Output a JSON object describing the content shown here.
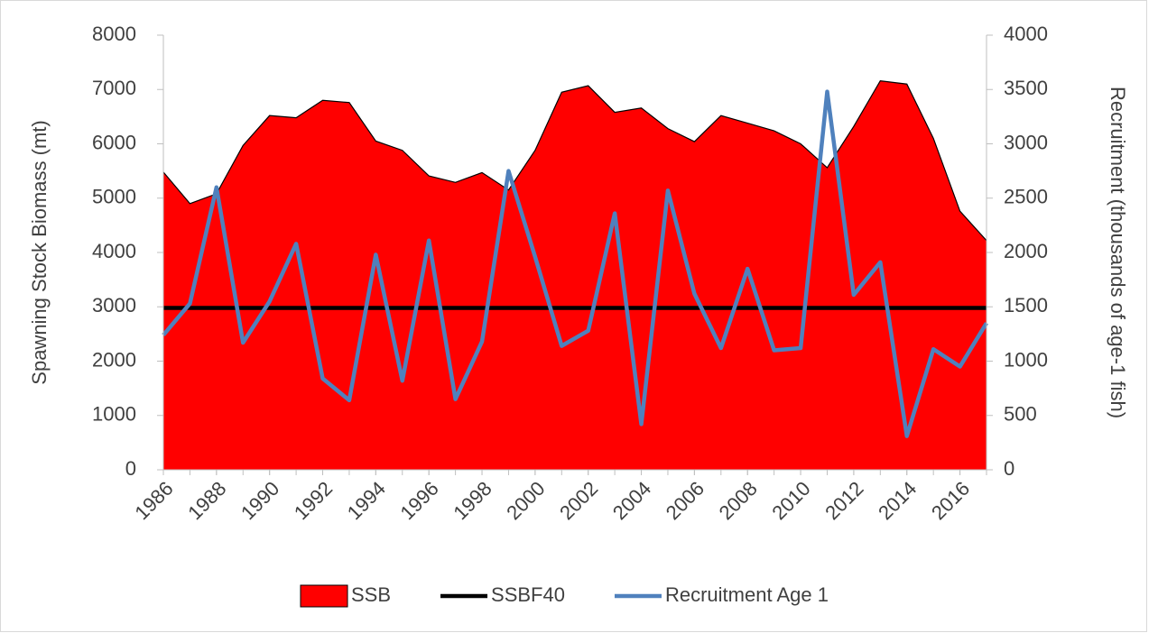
{
  "chart_data": {
    "type": "area-line",
    "x": [
      1986,
      1987,
      1988,
      1989,
      1990,
      1991,
      1992,
      1993,
      1994,
      1995,
      1996,
      1997,
      1998,
      1999,
      2000,
      2001,
      2002,
      2003,
      2004,
      2005,
      2006,
      2007,
      2008,
      2009,
      2010,
      2011,
      2012,
      2013,
      2014,
      2015,
      2016,
      2017
    ],
    "xlim": [
      1986,
      2017
    ],
    "xticks": [
      1986,
      1988,
      1990,
      1992,
      1994,
      1996,
      1998,
      2000,
      2002,
      2004,
      2006,
      2008,
      2010,
      2012,
      2014,
      2016
    ],
    "ylabel": "Spawning Stock Biomass (mt)",
    "y2label": "Recruitment (thousands of age-1 fish)",
    "ylim": [
      0,
      8000
    ],
    "yticks": [
      0,
      1000,
      2000,
      3000,
      4000,
      5000,
      6000,
      7000,
      8000
    ],
    "y2lim": [
      0,
      4000
    ],
    "y2ticks": [
      0,
      500,
      1000,
      1500,
      2000,
      2500,
      3000,
      3500,
      4000
    ],
    "legend": "bottom",
    "series": [
      {
        "name": "SSB",
        "kind": "area",
        "color": "#ff0000",
        "values": [
          5480,
          4900,
          5080,
          5970,
          6520,
          6480,
          6800,
          6760,
          6050,
          5880,
          5410,
          5290,
          5470,
          5150,
          5880,
          6950,
          7070,
          6580,
          6660,
          6280,
          6040,
          6520,
          6380,
          6240,
          6000,
          5560,
          6320,
          7160,
          7100,
          6100,
          4760,
          4220
        ]
      },
      {
        "name": "SSBF40",
        "kind": "line",
        "color": "#000000",
        "values": [
          2980,
          2980,
          2980,
          2980,
          2980,
          2980,
          2980,
          2980,
          2980,
          2980,
          2980,
          2980,
          2980,
          2980,
          2980,
          2980,
          2980,
          2980,
          2980,
          2980,
          2980,
          2980,
          2980,
          2980,
          2980,
          2980,
          2980,
          2980,
          2980,
          2980,
          2980,
          2980
        ]
      },
      {
        "name": "Recruitment Age 1",
        "kind": "line",
        "axis": "y2",
        "color": "#4f81bd",
        "values": [
          1240,
          1530,
          2600,
          1170,
          1550,
          2080,
          840,
          640,
          1980,
          820,
          2110,
          650,
          1180,
          2750,
          1960,
          1140,
          1280,
          2360,
          420,
          2570,
          1620,
          1120,
          1850,
          1100,
          1120,
          3480,
          1610,
          1910,
          310,
          1110,
          950,
          1350
        ]
      }
    ]
  }
}
